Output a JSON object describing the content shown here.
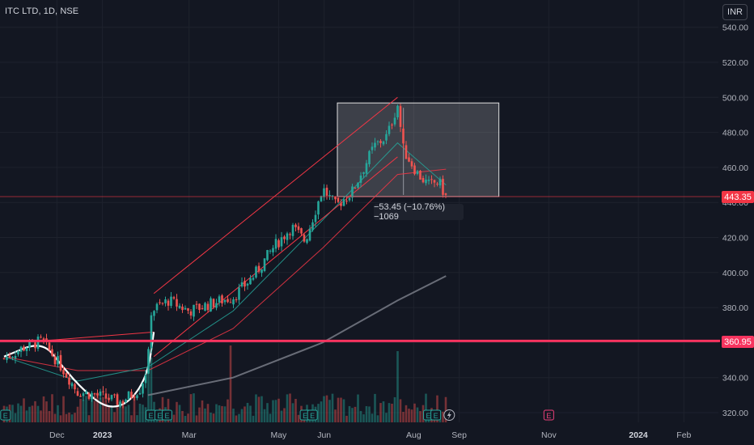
{
  "title": "ITC LTD, 1D, NSE",
  "currency": "INR",
  "current_price_tag": "443.35",
  "resistance_tag": "360.95",
  "measure_label": "−53.45 (−10.76%) −1069",
  "colors": {
    "background": "#131722",
    "up": "#26a69a",
    "down": "#ef5350",
    "channel": "#f23645",
    "resistance": "#f7345f",
    "ma_slow": "#787b86",
    "ma_fast": "#26a69a"
  },
  "event_markers": [
    "E",
    "E",
    "E",
    "E",
    "E",
    "E",
    "E",
    "E",
    "E"
  ],
  "chart_data": {
    "type": "candlestick",
    "title": "ITC LTD, 1D, NSE",
    "ylim": [
      312,
      544
    ],
    "y_ticks": [
      "540.00",
      "520.00",
      "500.00",
      "480.00",
      "460.00",
      "440.00",
      "420.00",
      "400.00",
      "380.00",
      "360.00",
      "340.00",
      "320.00"
    ],
    "x_ticks": [
      {
        "label": "Dec",
        "bold": false
      },
      {
        "label": "2023",
        "bold": true
      },
      {
        "label": "Mar",
        "bold": false
      },
      {
        "label": "May",
        "bold": false
      },
      {
        "label": "Jun",
        "bold": false
      },
      {
        "label": "Aug",
        "bold": false
      },
      {
        "label": "Sep",
        "bold": false
      },
      {
        "label": "Nov",
        "bold": false
      },
      {
        "label": "2024",
        "bold": true
      },
      {
        "label": "Feb",
        "bold": false
      }
    ],
    "current_price": 443.35,
    "resistance_level": 360.95,
    "measure": {
      "change": -53.45,
      "percent": -10.76,
      "bars": -1069,
      "from": 496.8,
      "to": 443.35
    },
    "price_path": [
      [
        "2022-10-26",
        351
      ],
      [
        "2022-11-10",
        358
      ],
      [
        "2022-11-21",
        361
      ],
      [
        "2022-12-05",
        345
      ],
      [
        "2022-12-15",
        332
      ],
      [
        "2022-12-28",
        330
      ],
      [
        "2023-01-13",
        326
      ],
      [
        "2023-01-27",
        334
      ],
      [
        "2023-02-01",
        348
      ],
      [
        "2023-02-03",
        378
      ],
      [
        "2023-02-15",
        384
      ],
      [
        "2023-03-01",
        378
      ],
      [
        "2023-03-15",
        382
      ],
      [
        "2023-03-31",
        386
      ],
      [
        "2023-04-14",
        398
      ],
      [
        "2023-04-28",
        415
      ],
      [
        "2023-05-10",
        426
      ],
      [
        "2023-05-19",
        418
      ],
      [
        "2023-05-31",
        448
      ],
      [
        "2023-06-09",
        438
      ],
      [
        "2023-06-20",
        446
      ],
      [
        "2023-07-05",
        472
      ],
      [
        "2023-07-14",
        478
      ],
      [
        "2023-07-21",
        496
      ],
      [
        "2023-07-25",
        470
      ],
      [
        "2023-08-04",
        456
      ],
      [
        "2023-08-11",
        450
      ],
      [
        "2023-08-18",
        452
      ],
      [
        "2023-08-23",
        443
      ]
    ],
    "series": [
      {
        "values": [
          [
            "2022-10-26",
            352
          ],
          [
            "2022-12-15",
            344
          ],
          [
            "2023-02-01",
            344
          ],
          [
            "2023-03-31",
            368
          ],
          [
            "2023-05-31",
            414
          ],
          [
            "2023-07-21",
            456
          ],
          [
            "2023-08-23",
            459
          ]
        ]
      },
      {
        "values": [
          [
            "2023-02-01",
            330
          ],
          [
            "2023-03-31",
            340
          ],
          [
            "2023-05-31",
            360
          ],
          [
            "2023-07-21",
            384
          ],
          [
            "2023-08-23",
            398
          ]
        ]
      },
      {
        "values": [
          [
            "2022-10-26",
            352
          ],
          [
            "2022-12-15",
            338
          ],
          [
            "2023-02-01",
            346
          ],
          [
            "2023-03-31",
            378
          ],
          [
            "2023-05-31",
            430
          ],
          [
            "2023-07-21",
            474
          ],
          [
            "2023-08-23",
            450
          ]
        ]
      }
    ],
    "channel_lines": [
      {
        "from": [
          "2023-02-05",
          388
        ],
        "to": [
          "2023-07-21",
          500
        ]
      },
      {
        "from": [
          "2023-02-05",
          352
        ],
        "to": [
          "2023-07-21",
          466
        ]
      },
      {
        "from": [
          "2022-11-21",
          361
        ],
        "to": [
          "2023-02-05",
          366
        ]
      }
    ],
    "volume": "relative bars (not labeled)"
  }
}
